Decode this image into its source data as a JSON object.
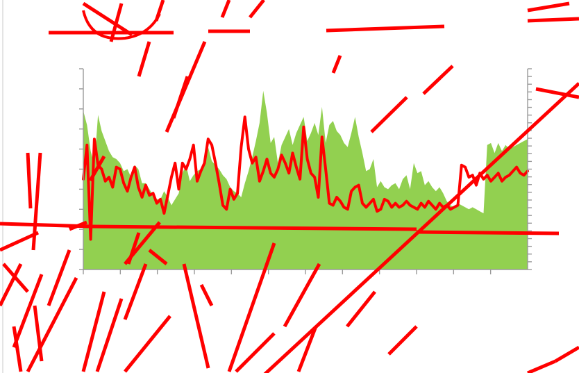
{
  "colors": {
    "background": "#ffffff",
    "area": "#92d050",
    "line": "#ff0000",
    "axis": "#9a9a9a",
    "scribble": "#ff0000"
  },
  "chart_data": {
    "type": "area",
    "title": "",
    "xlabel": "",
    "ylabel": "",
    "grid": false,
    "legend": "none",
    "x_tick_count": 12,
    "left_y_tick_count": 11,
    "right_y_tick_count": 27,
    "ylim": [
      0,
      10
    ],
    "x": [
      1,
      2,
      3,
      4,
      5,
      6,
      7,
      8,
      9,
      10,
      11,
      12,
      13,
      14,
      15,
      16,
      17,
      18,
      19,
      20,
      21,
      22,
      23,
      24,
      25,
      26,
      27,
      28,
      29,
      30,
      31,
      32,
      33,
      34,
      35,
      36,
      37,
      38,
      39,
      40,
      41,
      42,
      43,
      44,
      45,
      46,
      47,
      48,
      49,
      50,
      51,
      52,
      53,
      54,
      55,
      56,
      57,
      58,
      59,
      60,
      61,
      62,
      63,
      64,
      65,
      66,
      67,
      68,
      69,
      70,
      71,
      72,
      73,
      74,
      75,
      76,
      77,
      78,
      79,
      80,
      81,
      82,
      83,
      84,
      85,
      86,
      87,
      88,
      89,
      90,
      91,
      92,
      93,
      94,
      95,
      96,
      97,
      98,
      99,
      100,
      101,
      102,
      103,
      104,
      105,
      106,
      107,
      108,
      109,
      110,
      111,
      112,
      113,
      114,
      115,
      116,
      117,
      118,
      119,
      120,
      121,
      122
    ],
    "series": [
      {
        "type": "area",
        "values": [
          7.9,
          7.2,
          5.9,
          5.2,
          7.7,
          6.9,
          6.4,
          5.9,
          5.6,
          5.5,
          5.3,
          4.9,
          5.0,
          4.6,
          5.2,
          5.0,
          4.3,
          4.3,
          4.0,
          3.7,
          3.5,
          3.5,
          3.9,
          3.6,
          3.2,
          3.5,
          3.8,
          4.8,
          5.2,
          4.4,
          4.7,
          4.9,
          5.0,
          5.3,
          6.1,
          5.4,
          5.2,
          5.0,
          4.7,
          4.5,
          4.1,
          3.9,
          3.8,
          3.6,
          4.3,
          4.9,
          5.6,
          6.4,
          7.3,
          8.9,
          7.8,
          6.3,
          6.6,
          5.3,
          6.2,
          6.6,
          7.0,
          6.2,
          6.8,
          7.2,
          7.6,
          6.4,
          6.8,
          7.3,
          6.7,
          8.1,
          6.3,
          7.2,
          7.4,
          6.9,
          6.7,
          6.3,
          6.1,
          6.8,
          7.6,
          6.6,
          5.8,
          4.9,
          5.0,
          5.5,
          4.1,
          4.4,
          4.1,
          4.0,
          4.2,
          4.3,
          4.0,
          4.5,
          4.7,
          4.0,
          5.3,
          4.8,
          4.9,
          4.2,
          4.4,
          4.1,
          3.9,
          4.1,
          3.8,
          3.4,
          3.2,
          3.1,
          3.3,
          3.2,
          3.1,
          3.0,
          3.1,
          3.0,
          2.9,
          2.8,
          6.2,
          6.3,
          5.8,
          6.3,
          5.9,
          6.2,
          6.0,
          6.1,
          6.2,
          6.3,
          6.4,
          6.5
        ]
      },
      {
        "type": "line",
        "values": [
          4.5,
          6.2,
          1.5,
          6.5,
          5.2,
          5.0,
          4.4,
          4.6,
          4.1,
          5.1,
          5.0,
          4.3,
          3.9,
          4.6,
          5.1,
          4.1,
          3.6,
          4.2,
          3.7,
          3.8,
          3.3,
          3.5,
          2.8,
          3.7,
          4.6,
          5.3,
          4.0,
          5.3,
          5.0,
          5.5,
          6.2,
          4.4,
          4.9,
          5.3,
          6.5,
          6.2,
          5.3,
          4.3,
          3.2,
          3.0,
          4.0,
          3.5,
          3.8,
          6.1,
          7.6,
          6.0,
          5.3,
          5.6,
          4.4,
          4.9,
          5.5,
          4.8,
          4.6,
          5.0,
          5.7,
          5.3,
          4.8,
          5.8,
          5.1,
          4.5,
          7.1,
          5.5,
          4.8,
          4.6,
          3.6,
          6.6,
          5.0,
          3.3,
          3.2,
          3.6,
          3.4,
          3.1,
          3.0,
          3.9,
          4.1,
          4.2,
          3.3,
          3.1,
          3.3,
          3.5,
          2.9,
          3.0,
          3.5,
          3.4,
          3.1,
          3.3,
          3.1,
          3.2,
          3.4,
          3.2,
          3.1,
          3.0,
          3.3,
          3.1,
          3.4,
          3.2,
          3.0,
          3.3,
          3.1,
          3.2,
          3.0,
          3.1,
          3.2,
          5.2,
          5.1,
          4.6,
          4.7,
          4.2,
          4.8,
          4.5,
          4.7,
          4.4,
          4.6,
          4.8,
          4.4,
          4.6,
          4.7,
          4.9,
          5.1,
          4.8,
          4.7,
          4.9
        ]
      }
    ]
  }
}
